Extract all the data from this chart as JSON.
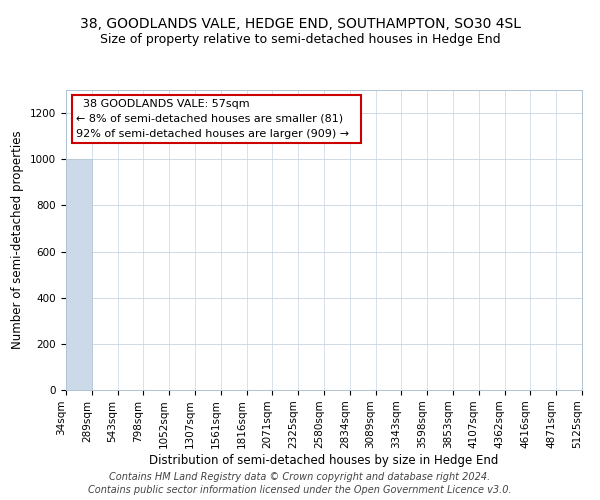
{
  "title": "38, GOODLANDS VALE, HEDGE END, SOUTHAMPTON, SO30 4SL",
  "subtitle": "Size of property relative to semi-detached houses in Hedge End",
  "xlabel": "Distribution of semi-detached houses by size in Hedge End",
  "ylabel": "Number of semi-detached properties",
  "annotation_line1": "38 GOODLANDS VALE: 57sqm",
  "annotation_line2": "← 8% of semi-detached houses are smaller (81)",
  "annotation_line3": "92% of semi-detached houses are larger (909) →",
  "footer_line1": "Contains HM Land Registry data © Crown copyright and database right 2024.",
  "footer_line2": "Contains public sector information licensed under the Open Government Licence v3.0.",
  "bin_edges": [
    34,
    289,
    543,
    798,
    1052,
    1307,
    1561,
    1816,
    2071,
    2325,
    2580,
    2834,
    3089,
    3343,
    3598,
    3853,
    4107,
    4362,
    4616,
    4871,
    5125
  ],
  "bar_heights": [
    1000,
    0,
    0,
    0,
    0,
    0,
    0,
    0,
    0,
    0,
    0,
    0,
    0,
    0,
    0,
    0,
    0,
    0,
    0,
    0
  ],
  "bar_color": "#ccd9e8",
  "annotation_box_edgecolor": "#cc0000",
  "background_color": "#ffffff",
  "grid_color": "#c8d4e0",
  "ylim": [
    0,
    1300
  ],
  "yticks": [
    0,
    200,
    400,
    600,
    800,
    1000,
    1200
  ],
  "title_fontsize": 10,
  "subtitle_fontsize": 9,
  "axis_label_fontsize": 8.5,
  "tick_fontsize": 7.5,
  "annotation_fontsize": 8,
  "footer_fontsize": 7
}
